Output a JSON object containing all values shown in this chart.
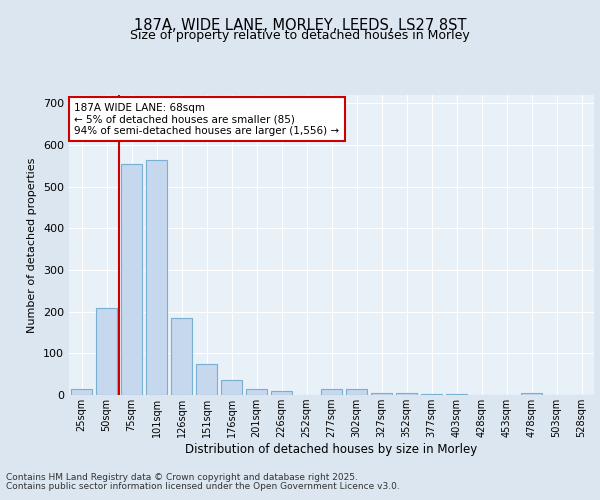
{
  "title_line1": "187A, WIDE LANE, MORLEY, LEEDS, LS27 8ST",
  "title_line2": "Size of property relative to detached houses in Morley",
  "xlabel": "Distribution of detached houses by size in Morley",
  "ylabel": "Number of detached properties",
  "categories": [
    "25sqm",
    "50sqm",
    "75sqm",
    "101sqm",
    "126sqm",
    "151sqm",
    "176sqm",
    "201sqm",
    "226sqm",
    "252sqm",
    "277sqm",
    "302sqm",
    "327sqm",
    "352sqm",
    "377sqm",
    "403sqm",
    "428sqm",
    "453sqm",
    "478sqm",
    "503sqm",
    "528sqm"
  ],
  "values": [
    15,
    210,
    555,
    565,
    185,
    75,
    35,
    15,
    10,
    0,
    15,
    15,
    5,
    5,
    2,
    2,
    0,
    0,
    5,
    0,
    0
  ],
  "bar_color": "#c5d8ed",
  "bar_edge_color": "#7aafd4",
  "vline_x": 1.5,
  "vline_color": "#cc0000",
  "ylim": [
    0,
    720
  ],
  "yticks": [
    0,
    100,
    200,
    300,
    400,
    500,
    600,
    700
  ],
  "annotation_text": "187A WIDE LANE: 68sqm\n← 5% of detached houses are smaller (85)\n94% of semi-detached houses are larger (1,556) →",
  "annotation_box_color": "#ffffff",
  "annotation_box_edge_color": "#cc0000",
  "footer_line1": "Contains HM Land Registry data © Crown copyright and database right 2025.",
  "footer_line2": "Contains public sector information licensed under the Open Government Licence v3.0.",
  "bg_color": "#dce6f0",
  "plot_bg_color": "#e8f0f8",
  "grid_color": "#ffffff"
}
